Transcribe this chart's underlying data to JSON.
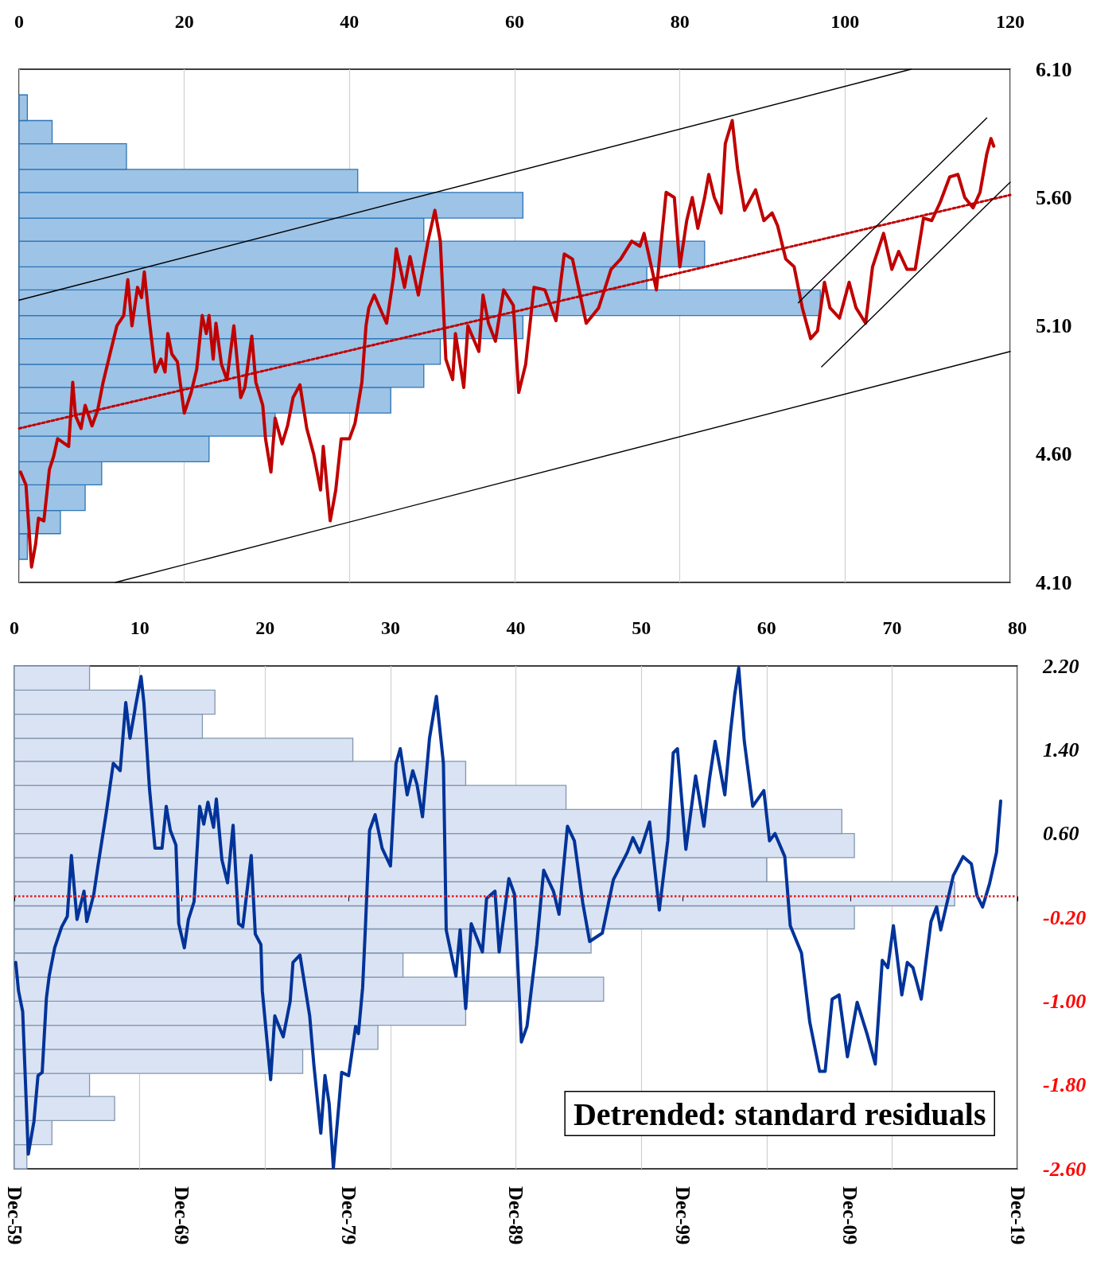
{
  "chart_data": [
    {
      "type": "histogram",
      "orientation": "horizontal",
      "color": "#9dc3e6",
      "bins": [
        4.19,
        4.29,
        4.38,
        4.48,
        4.57,
        4.67,
        4.76,
        4.86,
        4.95,
        5.05,
        5.14,
        5.24,
        5.33,
        5.43,
        5.52,
        5.62,
        5.71,
        5.81,
        5.9,
        6.0
      ],
      "values": [
        1,
        5,
        8,
        10,
        23,
        31,
        45,
        49,
        51,
        61,
        97,
        76,
        83,
        49,
        61,
        41,
        13,
        4,
        1
      ],
      "xlim": [
        0,
        120
      ],
      "xticks": [
        0,
        20,
        40,
        60,
        80,
        100,
        120
      ],
      "ylim": [
        4.1,
        6.1
      ],
      "yticks": [
        {
          "value": 4.1,
          "label": "4.10"
        },
        {
          "value": 4.6,
          "label": "4.60"
        },
        {
          "value": 5.1,
          "label": "5.10"
        },
        {
          "value": 5.6,
          "label": "5.60"
        },
        {
          "value": 6.1,
          "label": "6.10"
        }
      ],
      "grid": "x"
    },
    {
      "type": "line",
      "xlim": [
        "1959-12",
        "2019-12"
      ],
      "ylim": [
        4.1,
        6.1
      ],
      "tick_labels": false,
      "series": [
        {
          "color": "#c00000",
          "x": [
            "1960-01",
            "1960-05",
            "1960-09",
            "1960-12",
            "1961-02",
            "1961-06",
            "1961-10",
            "1962-01",
            "1962-04",
            "1962-12",
            "1963-03",
            "1963-05",
            "1963-09",
            "1963-12",
            "1964-05",
            "1964-09",
            "1965-01",
            "1965-06",
            "1965-11",
            "1966-04",
            "1966-07",
            "1966-10",
            "1967-02",
            "1967-05",
            "1967-07",
            "1967-10",
            "1968-03",
            "1968-07",
            "1968-10",
            "1968-12",
            "1969-03",
            "1969-07",
            "1969-12",
            "1970-05",
            "1970-09",
            "1971-01",
            "1971-04",
            "1971-06",
            "1971-09",
            "1971-11",
            "1972-03",
            "1972-07",
            "1972-12",
            "1973-05",
            "1973-08",
            "1974-01",
            "1974-04",
            "1974-09",
            "1974-11",
            "1975-03",
            "1975-06",
            "1975-11",
            "1976-03",
            "1976-07",
            "1976-12",
            "1977-05",
            "1977-10",
            "1978-03",
            "1978-05",
            "1978-10",
            "1979-02",
            "1979-06",
            "1979-12",
            "1980-04",
            "1980-09",
            "1980-12",
            "1981-02",
            "1981-06",
            "1981-10",
            "1982-03",
            "1982-08",
            "1982-10",
            "1983-04",
            "1983-08",
            "1984-02",
            "1984-09",
            "1985-02",
            "1985-06",
            "1985-10",
            "1986-03",
            "1986-05",
            "1986-11",
            "1987-02",
            "1987-10",
            "1988-01",
            "1988-05",
            "1988-10",
            "1989-04",
            "1989-11",
            "1990-03",
            "1990-08",
            "1991-02",
            "1991-10",
            "1992-06",
            "1992-12",
            "1993-06",
            "1994-04",
            "1995-01",
            "1995-10",
            "1996-05",
            "1997-01",
            "1997-07",
            "1997-10",
            "1998-07",
            "1999-02",
            "1999-08",
            "1999-12",
            "2000-05",
            "2000-09",
            "2001-01",
            "2001-06",
            "2001-09",
            "2002-01",
            "2002-06",
            "2002-09",
            "2003-02",
            "2003-06",
            "2003-11",
            "2004-07",
            "2005-01",
            "2005-07",
            "2005-11",
            "2006-05",
            "2006-11",
            "2007-05",
            "2007-11",
            "2008-04",
            "2008-09",
            "2009-01",
            "2009-08",
            "2010-03",
            "2010-08",
            "2011-03",
            "2011-08",
            "2012-04",
            "2012-10",
            "2013-03",
            "2013-09",
            "2014-03",
            "2014-09",
            "2015-03",
            "2015-09",
            "2016-04",
            "2016-10",
            "2017-03",
            "2017-09",
            "2018-02",
            "2018-07",
            "2018-10",
            "2018-12"
          ],
          "values": [
            4.53,
            4.48,
            4.16,
            4.25,
            4.35,
            4.34,
            4.54,
            4.59,
            4.66,
            4.63,
            4.88,
            4.75,
            4.7,
            4.79,
            4.71,
            4.77,
            4.88,
            4.99,
            5.1,
            5.14,
            5.28,
            5.1,
            5.25,
            5.21,
            5.31,
            5.15,
            4.92,
            4.97,
            4.92,
            5.07,
            4.99,
            4.96,
            4.76,
            4.84,
            4.93,
            5.14,
            5.07,
            5.14,
            4.97,
            5.11,
            4.95,
            4.89,
            5.1,
            4.82,
            4.86,
            5.06,
            4.88,
            4.79,
            4.66,
            4.53,
            4.74,
            4.64,
            4.71,
            4.82,
            4.87,
            4.7,
            4.6,
            4.46,
            4.63,
            4.34,
            4.46,
            4.66,
            4.66,
            4.72,
            4.88,
            5.1,
            5.17,
            5.22,
            5.17,
            5.11,
            5.29,
            5.4,
            5.25,
            5.37,
            5.22,
            5.43,
            5.55,
            5.43,
            4.97,
            4.89,
            5.07,
            4.86,
            5.1,
            5.0,
            5.22,
            5.11,
            5.04,
            5.24,
            5.18,
            4.84,
            4.95,
            5.25,
            5.24,
            5.12,
            5.38,
            5.36,
            5.11,
            5.17,
            5.32,
            5.36,
            5.43,
            5.41,
            5.46,
            5.24,
            5.62,
            5.6,
            5.33,
            5.51,
            5.6,
            5.48,
            5.6,
            5.69,
            5.6,
            5.54,
            5.81,
            5.9,
            5.71,
            5.55,
            5.63,
            5.51,
            5.54,
            5.49,
            5.36,
            5.33,
            5.17,
            5.05,
            5.08,
            5.27,
            5.17,
            5.13,
            5.27,
            5.17,
            5.11,
            5.33,
            5.46,
            5.32,
            5.39,
            5.32,
            5.32,
            5.52,
            5.51,
            5.58,
            5.68,
            5.69,
            5.6,
            5.56,
            5.62,
            5.77,
            5.83,
            5.8
          ]
        },
        {
          "color": "#c00000",
          "line_style": "dotted",
          "x": [
            "1959-12",
            "2019-12"
          ],
          "values": [
            4.7,
            5.61
          ]
        },
        {
          "color": "#000000",
          "x": [
            "1959-12",
            "2013-12"
          ],
          "values": [
            5.2,
            6.1
          ]
        },
        {
          "color": "#000000",
          "x": [
            "1965-10",
            "2019-12"
          ],
          "values": [
            4.1,
            5.0
          ]
        },
        {
          "color": "#000000",
          "x": [
            "2007-02",
            "2018-07"
          ],
          "values": [
            5.19,
            5.91
          ]
        },
        {
          "color": "#000000",
          "x": [
            "2008-07",
            "2019-12"
          ],
          "values": [
            4.94,
            5.66
          ]
        }
      ]
    },
    {
      "type": "histogram",
      "orientation": "horizontal",
      "color": "#dae3f3",
      "bins": [
        -2.6,
        -2.37,
        -2.14,
        -1.91,
        -1.69,
        -1.46,
        -1.23,
        -1.0,
        -0.77,
        -0.54,
        -0.31,
        -0.09,
        0.14,
        0.37,
        0.6,
        0.83,
        1.06,
        1.29,
        1.51,
        1.74,
        1.97,
        2.2
      ],
      "values": [
        1,
        3,
        8,
        6,
        23,
        29,
        36,
        47,
        31,
        46,
        67,
        75,
        60,
        67,
        66,
        44,
        36,
        27,
        15,
        16,
        6
      ],
      "xlim": [
        0,
        80
      ],
      "xticks": [
        0,
        10,
        20,
        30,
        40,
        50,
        60,
        70,
        80
      ],
      "ylim": [
        -2.6,
        2.2
      ],
      "yticks": [
        {
          "value": -2.6,
          "label": "-2.60"
        },
        {
          "value": -1.8,
          "label": "-1.80"
        },
        {
          "value": -1.0,
          "label": "-1.00"
        },
        {
          "value": -0.2,
          "label": "-0.20"
        },
        {
          "value": 0.6,
          "label": "0.60"
        },
        {
          "value": 1.4,
          "label": "1.40"
        },
        {
          "value": 2.2,
          "label": "2.20"
        }
      ],
      "grid": "x"
    },
    {
      "type": "line",
      "xlim": [
        "1959-12",
        "2019-12"
      ],
      "xticks": [
        {
          "value": "1959-12",
          "label": "Dec-59"
        },
        {
          "value": "1969-12",
          "label": "Dec-69"
        },
        {
          "value": "1979-12",
          "label": "Dec-79"
        },
        {
          "value": "1989-12",
          "label": "Dec-89"
        },
        {
          "value": "1999-12",
          "label": "Dec-99"
        },
        {
          "value": "2009-12",
          "label": "Dec-09"
        },
        {
          "value": "2019-12",
          "label": "Dec-19"
        }
      ],
      "ylim": [
        -2.6,
        2.2
      ],
      "tick_labels": "x",
      "annotations": [
        "Detrended: standard residuals"
      ],
      "ref_lines": [
        {
          "axis": "y",
          "value": 0,
          "color": "#e02020",
          "line_style": "dotted"
        }
      ],
      "series": [
        {
          "color": "#003399",
          "x": [
            "1960-01",
            "1960-03",
            "1960-06",
            "1960-10",
            "1961-02",
            "1961-05",
            "1961-08",
            "1961-11",
            "1962-01",
            "1962-05",
            "1962-10",
            "1963-02",
            "1963-05",
            "1963-09",
            "1964-02",
            "1964-04",
            "1964-09",
            "1964-12",
            "1965-06",
            "1965-11",
            "1966-04",
            "1966-08",
            "1966-11",
            "1967-03",
            "1967-07",
            "1967-09",
            "1968-01",
            "1968-05",
            "1968-10",
            "1969-01",
            "1969-04",
            "1969-08",
            "1969-10",
            "1970-02",
            "1970-05",
            "1970-09",
            "1971-01",
            "1971-04",
            "1971-07",
            "1971-11",
            "1972-01",
            "1972-05",
            "1972-09",
            "1973-01",
            "1973-05",
            "1973-08",
            "1974-02",
            "1974-05",
            "1974-09",
            "1974-10",
            "1975-04",
            "1975-07",
            "1976-01",
            "1976-06",
            "1976-08",
            "1977-01",
            "1977-08",
            "1977-11",
            "1978-04",
            "1978-07",
            "1978-10",
            "1979-01",
            "1979-07",
            "1979-12",
            "1980-05",
            "1980-07",
            "1980-10",
            "1980-12",
            "1981-03",
            "1981-07",
            "1981-12",
            "1982-06",
            "1982-10",
            "1983-01",
            "1983-06",
            "1983-10",
            "1984-01",
            "1984-05",
            "1984-10",
            "1985-03",
            "1985-08",
            "1985-10",
            "1986-05",
            "1986-08",
            "1986-12",
            "1987-04",
            "1987-12",
            "1988-03",
            "1988-09",
            "1988-12",
            "1989-07",
            "1989-11",
            "1990-04",
            "1990-08",
            "1991-03",
            "1991-08",
            "1992-03",
            "1992-07",
            "1993-01",
            "1993-06",
            "1993-12",
            "1994-05",
            "1995-02",
            "1995-10",
            "1996-08",
            "1996-12",
            "1997-05",
            "1997-12",
            "1998-07",
            "1999-01",
            "1999-05",
            "1999-08",
            "2000-02",
            "2000-09",
            "2001-03",
            "2001-07",
            "2001-11",
            "2002-06",
            "2002-10",
            "2003-01",
            "2003-04",
            "2003-08",
            "2004-02",
            "2004-10",
            "2005-02",
            "2005-06",
            "2006-01",
            "2006-05",
            "2007-01",
            "2007-07",
            "2008-02",
            "2008-06",
            "2008-11",
            "2009-04",
            "2009-10",
            "2010-05",
            "2010-12",
            "2011-06",
            "2011-11",
            "2012-03",
            "2012-07",
            "2013-01",
            "2013-05",
            "2013-09",
            "2014-03",
            "2014-10",
            "2015-02",
            "2015-05",
            "2016-02",
            "2016-09",
            "2017-03",
            "2017-07",
            "2017-11",
            "2018-04",
            "2018-09",
            "2018-12"
          ],
          "values": [
            -0.63,
            -0.9,
            -1.1,
            -2.46,
            -2.15,
            -1.71,
            -1.68,
            -0.97,
            -0.76,
            -0.49,
            -0.29,
            -0.19,
            0.39,
            -0.22,
            0.05,
            -0.24,
            0.02,
            0.29,
            0.8,
            1.27,
            1.2,
            1.85,
            1.51,
            1.81,
            2.1,
            1.85,
            1.03,
            0.46,
            0.46,
            0.86,
            0.63,
            0.49,
            -0.26,
            -0.49,
            -0.22,
            -0.05,
            0.86,
            0.69,
            0.9,
            0.66,
            0.93,
            0.35,
            0.13,
            0.68,
            -0.26,
            -0.29,
            0.39,
            -0.36,
            -0.46,
            -0.9,
            -1.75,
            -1.14,
            -1.34,
            -1.0,
            -0.63,
            -0.56,
            -1.14,
            -1.61,
            -2.26,
            -1.71,
            -1.98,
            -2.59,
            -1.68,
            -1.71,
            -1.24,
            -1.31,
            -0.87,
            -0.29,
            0.63,
            0.78,
            0.46,
            0.29,
            1.27,
            1.41,
            0.97,
            1.2,
            1.07,
            0.76,
            1.51,
            1.91,
            1.27,
            -0.32,
            -0.76,
            -0.32,
            -1.07,
            -0.26,
            -0.53,
            -0.02,
            0.05,
            -0.53,
            0.17,
            0.02,
            -1.39,
            -1.24,
            -0.46,
            0.25,
            0.05,
            -0.17,
            0.67,
            0.53,
            -0.06,
            -0.43,
            -0.35,
            0.16,
            0.42,
            0.56,
            0.42,
            0.71,
            -0.13,
            0.53,
            1.37,
            1.41,
            0.45,
            1.15,
            0.67,
            1.12,
            1.48,
            0.97,
            1.56,
            1.92,
            2.18,
            1.48,
            0.86,
            1.01,
            0.53,
            0.6,
            0.38,
            -0.28,
            -0.54,
            -1.2,
            -1.67,
            -1.67,
            -0.98,
            -0.94,
            -1.53,
            -1.01,
            -1.31,
            -1.6,
            -0.61,
            -0.68,
            -0.28,
            -0.94,
            -0.63,
            -0.68,
            -0.98,
            -0.24,
            -0.1,
            -0.32,
            0.2,
            0.38,
            0.31,
            0.01,
            -0.1,
            0.12,
            0.42,
            0.91
          ]
        }
      ]
    }
  ]
}
